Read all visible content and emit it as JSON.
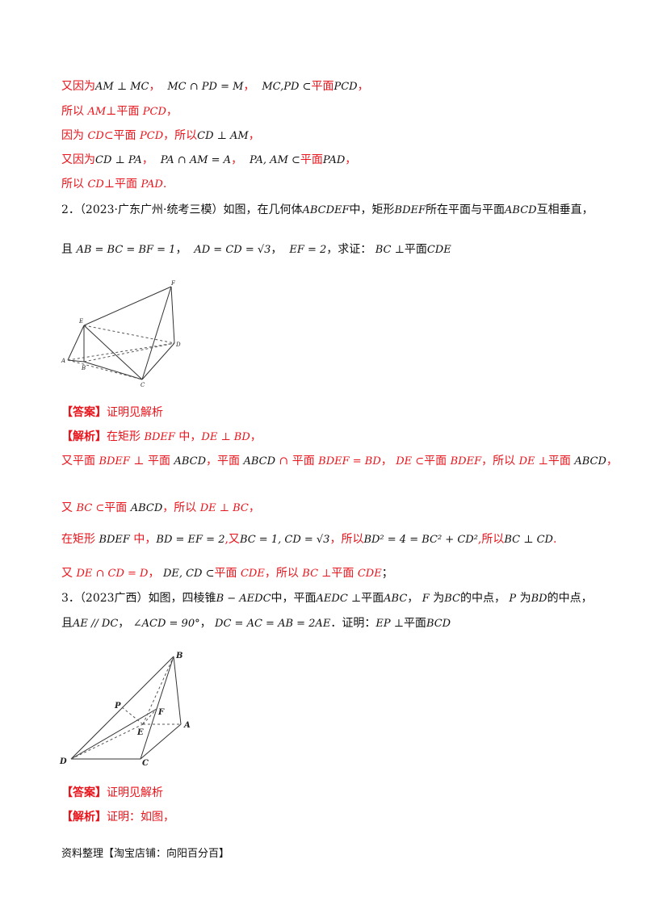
{
  "lines": {
    "l1": {
      "a": "又因为",
      "b": "AM ⊥ MC",
      "c": "，",
      "d": "MC ∩ PD = M",
      "e": "，",
      "f": "MC,PD ⊂",
      "g": "平面",
      "h": "PCD",
      "i": "，"
    },
    "l2": {
      "a": "所以 ",
      "b": "AM",
      "c": "⊥平面 ",
      "d": "PCD",
      "e": "，"
    },
    "l3": {
      "a": "因为 ",
      "b": "CD",
      "c": "⊂平面 ",
      "d": "PCD",
      "e": "，所以",
      "f": "CD ⊥ AM",
      "g": "，"
    },
    "l4": {
      "a": "又因为",
      "b": "CD ⊥ PA",
      "c": "，",
      "d": "PA ∩ AM = A",
      "e": "，",
      "f": "PA, AM ⊂",
      "g": "平面",
      "h": "PAD",
      "i": "，"
    },
    "l5": {
      "a": "所以 ",
      "b": "CD",
      "c": "⊥平面 ",
      "d": "PAD",
      "e": "."
    }
  },
  "q2": {
    "num": "2．",
    "src": "（2023·广东广州·统考三模）",
    "t1": "如图，在几何体",
    "t2": "ABCDEF",
    "t3": "中，矩形",
    "t4": "BDEF",
    "t5": "所在平面与平面",
    "t6": "ABCD",
    "t7": "互相垂直，",
    "c1": "且",
    "c2": "AB = BC = BF = 1",
    "c3": "，",
    "c4": "AD = CD = √3",
    "c5": "，",
    "c6": "EF = 2",
    "c7": "，求证：",
    "c8": "BC ⊥",
    "c9": "平面",
    "c10": "CDE",
    "fig_labels": {
      "F": "F",
      "E": "E",
      "D": "D",
      "A": "A",
      "B": "B",
      "C": "C"
    },
    "answer_tag": "【答案】",
    "answer": "证明见解析",
    "analysis_tag": "【解析】",
    "s1": {
      "a": "在矩形 ",
      "b": "BDEF",
      "c": " 中，",
      "d": "DE ⊥ BD",
      "e": "，"
    },
    "s2": {
      "a": "又平面 ",
      "b": "BDEF",
      "c": " ⊥ 平面 ",
      "d": "ABCD",
      "e": "，平面 ",
      "f": "ABCD",
      "g": " ∩ 平面 ",
      "h": "BDEF = BD",
      "i": "，",
      "j": "DE ⊂",
      "k": "平面 ",
      "l": "BDEF",
      "m": "，所以 ",
      "n": "DE ⊥",
      "o": "平面 ",
      "p": "ABCD",
      "q": "，"
    },
    "s3": {
      "a": "又 ",
      "b": "BC ⊂",
      "c": "平面 ",
      "d": "ABCD",
      "e": "，所以 ",
      "f": "DE ⊥ BC",
      "g": "，"
    },
    "s4": {
      "a": "在矩形 ",
      "b": "BDEF",
      "c": " 中，",
      "d": "BD = EF = 2",
      "e": ",又",
      "f": "BC = 1, CD = √3",
      "g": "，所以",
      "h": "BD² = 4 = BC² + CD²",
      "i": ",所以",
      "j": "BC ⊥ CD",
      "k": "."
    },
    "s5": {
      "a": "又 ",
      "b": "DE ∩ CD = D",
      "c": "，",
      "d": "DE, CD ⊂",
      "e": "平面 ",
      "f": "CDE",
      "g": "，所以 ",
      "h": "BC ⊥",
      "i": "平面 ",
      "j": "CDE",
      "k": "；"
    }
  },
  "q3": {
    "num": "3．",
    "src": "（2023广西）",
    "t1": "如图，四棱锥",
    "t2": "B − AEDC",
    "t3": "中，平面",
    "t4": "AEDC ⊥",
    "t5": "平面",
    "t6": "ABC",
    "t7": "，",
    "t8": "F",
    "t9": "为",
    "t10": "BC",
    "t11": "的中点，",
    "t12": "P",
    "t13": "为",
    "t14": "BD",
    "t15": "的中点，",
    "c1": "且",
    "c2": "AE // DC",
    "c3": "，",
    "c4": "∠ACD = 90°",
    "c5": "，",
    "c6": "DC = AC = AB = 2AE",
    "c7": "．证明：",
    "c8": "EP ⊥",
    "c9": "平面",
    "c10": "BCD",
    "fig_labels": {
      "B": "B",
      "P": "P",
      "F": "F",
      "E": "E",
      "A": "A",
      "D": "D",
      "C": "C"
    },
    "answer_tag": "【答案】",
    "answer": "证明见解析",
    "analysis_tag": "【解析】",
    "analysis": "证明：如图，"
  },
  "footer": "资料整理【淘宝店铺：向阳百分百】",
  "colors": {
    "red": "#e8141b",
    "text": "#111111"
  }
}
